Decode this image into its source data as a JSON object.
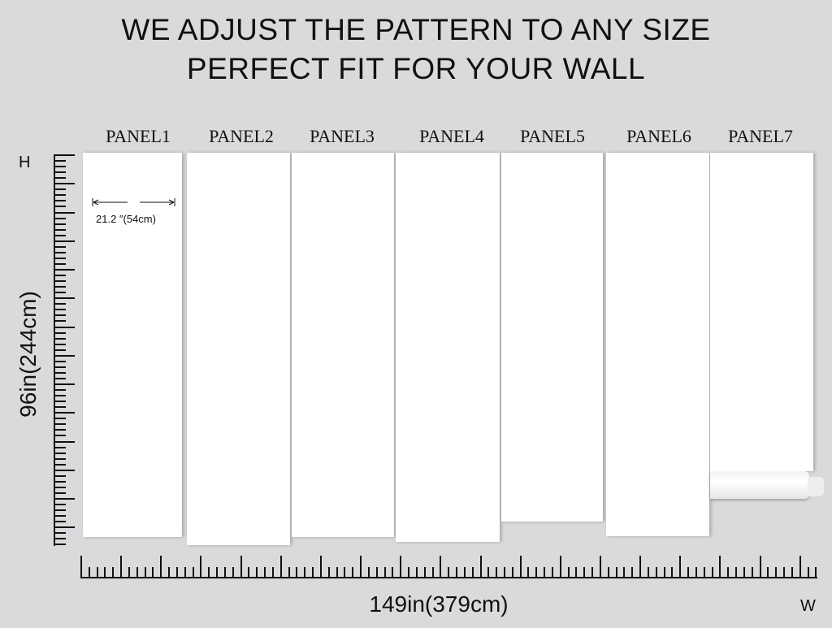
{
  "heading": {
    "line1": "WE ADJUST THE PATTERN TO ANY SIZE",
    "line2": "PERFECT FIT FOR YOUR WALL"
  },
  "panels": [
    "PANEL1",
    "PANEL2",
    "PANEL3",
    "PANEL4",
    "PANEL5",
    "PANEL6",
    "PANEL7"
  ],
  "panel_width_label": "21.2  ″(54cm)",
  "height_axis": {
    "letter": "H",
    "label": "96in(244cm)"
  },
  "width_axis": {
    "letter": "W",
    "label": "149in(379cm)"
  },
  "colors": {
    "background": "#d9dadc",
    "panel": "#ffffff",
    "ink": "#111111"
  }
}
